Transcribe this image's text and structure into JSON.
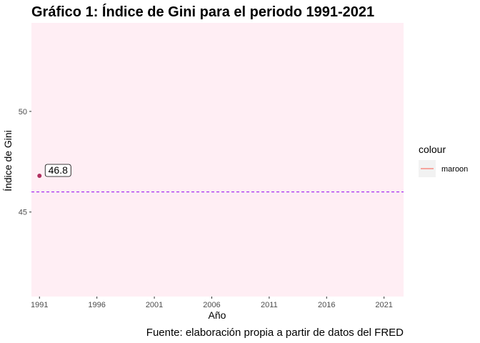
{
  "chart_data": {
    "type": "scatter",
    "title": "Gráfico 1: Índice de Gini para el periodo 1991-2021",
    "xlabel": "Año",
    "ylabel": "Índice de Gini",
    "caption": "Fuente: elaboración propia a partir de datos del FRED",
    "xlim": [
      1990.3,
      2022.7
    ],
    "ylim": [
      40.8,
      54.4
    ],
    "x_ticks": [
      1991,
      1996,
      2001,
      2006,
      2011,
      2016,
      2021
    ],
    "y_ticks": [
      45,
      50
    ],
    "points": [
      {
        "x": 1991,
        "y": 46.8,
        "label": "46.8"
      }
    ],
    "hline": {
      "y": 46.0,
      "color": "#a020f0",
      "style": "dashed"
    },
    "point_color": "#b03060",
    "panel_background": "#ffeef4",
    "grid": false,
    "legend": {
      "title": "colour",
      "items": [
        {
          "label": "maroon",
          "color": "#f8766d"
        }
      ],
      "position": "right"
    }
  }
}
